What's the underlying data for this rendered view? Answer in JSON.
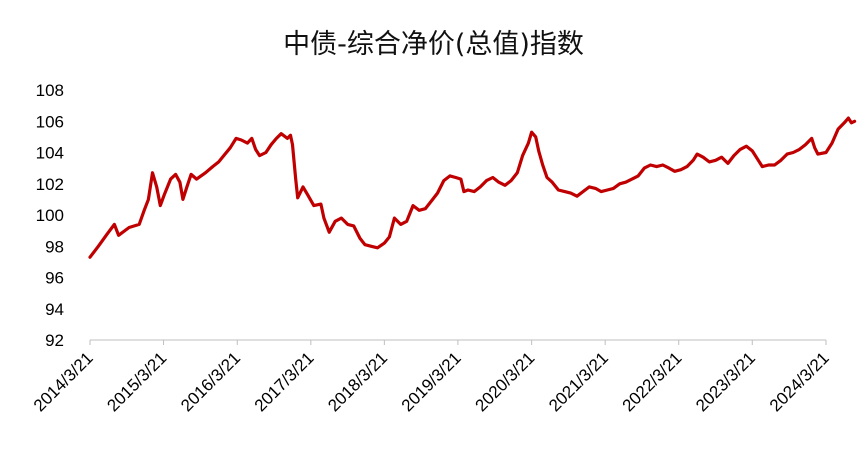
{
  "chart_data": {
    "type": "line",
    "title": "中债-综合净价(总值)指数",
    "xlabel": "",
    "ylabel": "",
    "ylim": [
      92,
      108
    ],
    "yticks": [
      92,
      94,
      96,
      98,
      100,
      102,
      104,
      106,
      108
    ],
    "x_ticks": [
      "2014/3/21",
      "2015/3/21",
      "2016/3/21",
      "2017/3/21",
      "2018/3/21",
      "2019/3/21",
      "2020/3/21",
      "2021/3/21",
      "2022/3/21",
      "2023/3/21",
      "2024/3/21"
    ],
    "grid": false,
    "legend": "none",
    "series": [
      {
        "color": "#c00000",
        "points": [
          [
            "2014/3/21",
            97.3
          ],
          [
            "2014/5/1",
            98.0
          ],
          [
            "2014/6/15",
            98.8
          ],
          [
            "2014/7/20",
            99.4
          ],
          [
            "2014/8/10",
            98.7
          ],
          [
            "2014/10/1",
            99.2
          ],
          [
            "2014/11/20",
            99.4
          ],
          [
            "2014/12/15",
            100.3
          ],
          [
            "2015/1/5",
            101.0
          ],
          [
            "2015/1/25",
            102.7
          ],
          [
            "2015/2/15",
            101.8
          ],
          [
            "2015/3/5",
            100.6
          ],
          [
            "2015/3/25",
            101.3
          ],
          [
            "2015/4/25",
            102.3
          ],
          [
            "2015/5/20",
            102.6
          ],
          [
            "2015/6/10",
            102.1
          ],
          [
            "2015/6/25",
            101.0
          ],
          [
            "2015/7/15",
            101.8
          ],
          [
            "2015/8/5",
            102.6
          ],
          [
            "2015/9/1",
            102.3
          ],
          [
            "2015/10/15",
            102.7
          ],
          [
            "2015/11/20",
            103.1
          ],
          [
            "2015/12/20",
            103.4
          ],
          [
            "2016/1/20",
            103.9
          ],
          [
            "2016/2/15",
            104.3
          ],
          [
            "2016/3/15",
            104.9
          ],
          [
            "2016/4/10",
            104.8
          ],
          [
            "2016/5/10",
            104.6
          ],
          [
            "2016/6/1",
            104.9
          ],
          [
            "2016/6/20",
            104.2
          ],
          [
            "2016/7/10",
            103.8
          ],
          [
            "2016/8/10",
            104.0
          ],
          [
            "2016/9/5",
            104.5
          ],
          [
            "2016/10/1",
            104.9
          ],
          [
            "2016/10/25",
            105.2
          ],
          [
            "2016/11/25",
            104.9
          ],
          [
            "2016/12/10",
            105.1
          ],
          [
            "2016/12/20",
            104.5
          ],
          [
            "2017/1/5",
            102.3
          ],
          [
            "2017/1/15",
            101.1
          ],
          [
            "2017/2/10",
            101.8
          ],
          [
            "2017/3/5",
            101.3
          ],
          [
            "2017/4/5",
            100.6
          ],
          [
            "2017/5/10",
            100.7
          ],
          [
            "2017/5/25",
            99.8
          ],
          [
            "2017/6/20",
            98.9
          ],
          [
            "2017/7/20",
            99.6
          ],
          [
            "2017/8/20",
            99.8
          ],
          [
            "2017/9/20",
            99.4
          ],
          [
            "2017/10/20",
            99.3
          ],
          [
            "2017/11/20",
            98.5
          ],
          [
            "2017/12/15",
            98.1
          ],
          [
            "2018/1/15",
            98.0
          ],
          [
            "2018/2/15",
            97.9
          ],
          [
            "2018/3/21",
            98.2
          ],
          [
            "2018/4/15",
            98.6
          ],
          [
            "2018/5/10",
            99.8
          ],
          [
            "2018/6/10",
            99.4
          ],
          [
            "2018/7/10",
            99.6
          ],
          [
            "2018/8/10",
            100.6
          ],
          [
            "2018/9/10",
            100.3
          ],
          [
            "2018/10/10",
            100.4
          ],
          [
            "2018/11/10",
            100.9
          ],
          [
            "2018/12/10",
            101.4
          ],
          [
            "2019/1/10",
            102.2
          ],
          [
            "2019/2/10",
            102.5
          ],
          [
            "2019/3/10",
            102.4
          ],
          [
            "2019/4/5",
            102.3
          ],
          [
            "2019/4/20",
            101.5
          ],
          [
            "2019/5/10",
            101.6
          ],
          [
            "2019/6/10",
            101.5
          ],
          [
            "2019/7/10",
            101.8
          ],
          [
            "2019/8/10",
            102.2
          ],
          [
            "2019/9/10",
            102.4
          ],
          [
            "2019/10/10",
            102.1
          ],
          [
            "2019/11/10",
            101.9
          ],
          [
            "2019/12/10",
            102.2
          ],
          [
            "2020/1/10",
            102.7
          ],
          [
            "2020/2/5",
            103.8
          ],
          [
            "2020/3/5",
            104.6
          ],
          [
            "2020/3/21",
            105.3
          ],
          [
            "2020/4/10",
            105.0
          ],
          [
            "2020/4/25",
            104.1
          ],
          [
            "2020/5/15",
            103.2
          ],
          [
            "2020/6/5",
            102.4
          ],
          [
            "2020/7/1",
            102.1
          ],
          [
            "2020/8/1",
            101.6
          ],
          [
            "2020/9/1",
            101.5
          ],
          [
            "2020/10/1",
            101.4
          ],
          [
            "2020/11/1",
            101.2
          ],
          [
            "2020/12/1",
            101.5
          ],
          [
            "2021/1/1",
            101.8
          ],
          [
            "2021/2/1",
            101.7
          ],
          [
            "2021/3/1",
            101.5
          ],
          [
            "2021/4/1",
            101.6
          ],
          [
            "2021/5/1",
            101.7
          ],
          [
            "2021/6/1",
            102.0
          ],
          [
            "2021/7/1",
            102.1
          ],
          [
            "2021/8/1",
            102.3
          ],
          [
            "2021/9/1",
            102.5
          ],
          [
            "2021/10/1",
            103.0
          ],
          [
            "2021/11/1",
            103.2
          ],
          [
            "2021/12/1",
            103.1
          ],
          [
            "2022/1/1",
            103.2
          ],
          [
            "2022/2/1",
            103.0
          ],
          [
            "2022/3/1",
            102.8
          ],
          [
            "2022/4/1",
            102.9
          ],
          [
            "2022/5/1",
            103.1
          ],
          [
            "2022/6/1",
            103.5
          ],
          [
            "2022/6/20",
            103.9
          ],
          [
            "2022/7/20",
            103.7
          ],
          [
            "2022/8/20",
            103.4
          ],
          [
            "2022/9/20",
            103.5
          ],
          [
            "2022/10/20",
            103.7
          ],
          [
            "2022/11/20",
            103.3
          ],
          [
            "2022/12/20",
            103.8
          ],
          [
            "2023/1/20",
            104.2
          ],
          [
            "2023/2/20",
            104.4
          ],
          [
            "2023/3/21",
            104.1
          ],
          [
            "2023/4/20",
            103.5
          ],
          [
            "2023/5/10",
            103.1
          ],
          [
            "2023/6/10",
            103.2
          ],
          [
            "2023/7/10",
            103.2
          ],
          [
            "2023/8/10",
            103.5
          ],
          [
            "2023/9/10",
            103.9
          ],
          [
            "2023/10/10",
            104.0
          ],
          [
            "2023/11/10",
            104.2
          ],
          [
            "2023/12/10",
            104.5
          ],
          [
            "2024/1/10",
            104.9
          ],
          [
            "2024/1/25",
            104.3
          ],
          [
            "2024/2/10",
            103.9
          ],
          [
            "2024/3/21",
            104.0
          ],
          [
            "2024/4/20",
            104.6
          ],
          [
            "2024/5/20",
            105.5
          ],
          [
            "2024/6/20",
            105.9
          ],
          [
            "2024/7/10",
            106.2
          ],
          [
            "2024/7/25",
            105.9
          ],
          [
            "2024/8/10",
            106.0
          ]
        ]
      }
    ]
  }
}
